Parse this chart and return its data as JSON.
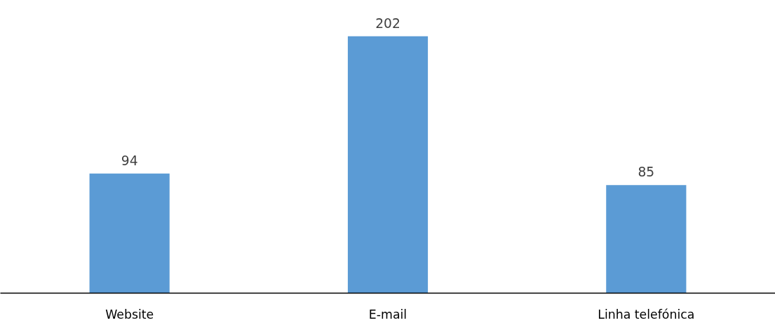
{
  "chart_data": {
    "type": "bar",
    "categories": [
      "Website",
      "E-mail",
      "Linha telefónica"
    ],
    "values": [
      94,
      202,
      85
    ],
    "color": "#5b9bd5",
    "data_labels": true,
    "grid": false
  }
}
